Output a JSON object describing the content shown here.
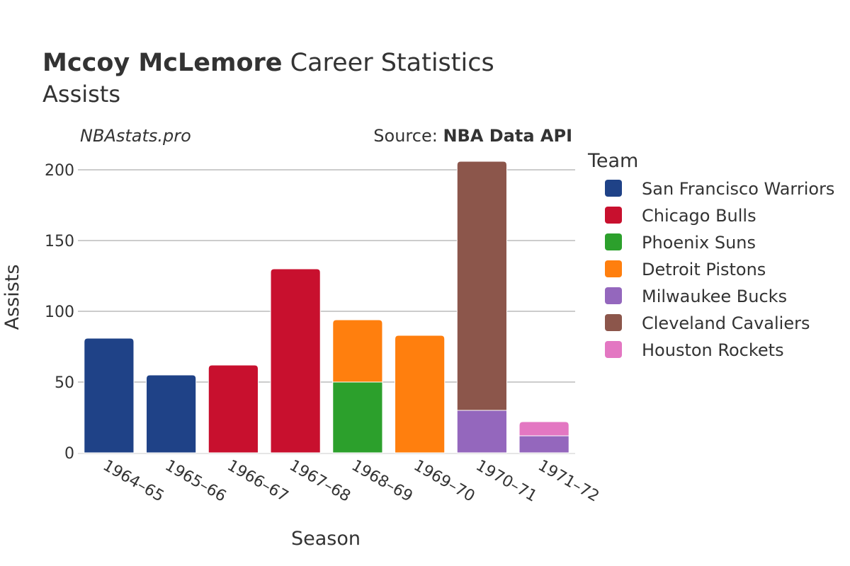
{
  "chart_data": {
    "type": "bar",
    "stacked": true,
    "title_bold": "Mccoy McLemore",
    "title_rest": " Career Statistics",
    "subtitle": "Assists",
    "watermark": "NBAstats.pro",
    "source_prefix": "Source: ",
    "source_name": "NBA Data API",
    "xlabel": "Season",
    "ylabel": "Assists",
    "legend_title": "Team",
    "ylim": [
      0,
      210
    ],
    "yticks": [
      0,
      50,
      100,
      150,
      200
    ],
    "categories": [
      "1964–65",
      "1965–66",
      "1966–67",
      "1967–68",
      "1968–69",
      "1969–70",
      "1970–71",
      "1971–72"
    ],
    "series": [
      {
        "name": "San Francisco Warriors",
        "color": "#1f4287",
        "values": [
          81,
          55,
          0,
          0,
          0,
          0,
          0,
          0
        ]
      },
      {
        "name": "Chicago Bulls",
        "color": "#c8102e",
        "values": [
          0,
          0,
          62,
          130,
          0,
          0,
          0,
          0
        ]
      },
      {
        "name": "Phoenix Suns",
        "color": "#2ca02c",
        "values": [
          0,
          0,
          0,
          0,
          50,
          0,
          0,
          0
        ]
      },
      {
        "name": "Detroit Pistons",
        "color": "#ff7f0e",
        "values": [
          0,
          0,
          0,
          0,
          44,
          83,
          0,
          0
        ]
      },
      {
        "name": "Milwaukee Bucks",
        "color": "#9467bd",
        "values": [
          0,
          0,
          0,
          0,
          0,
          0,
          30,
          12
        ]
      },
      {
        "name": "Cleveland Cavaliers",
        "color": "#8c564b",
        "values": [
          0,
          0,
          0,
          0,
          0,
          0,
          176,
          0
        ]
      },
      {
        "name": "Houston Rockets",
        "color": "#e377c2",
        "values": [
          0,
          0,
          0,
          0,
          0,
          0,
          0,
          10
        ]
      }
    ]
  }
}
